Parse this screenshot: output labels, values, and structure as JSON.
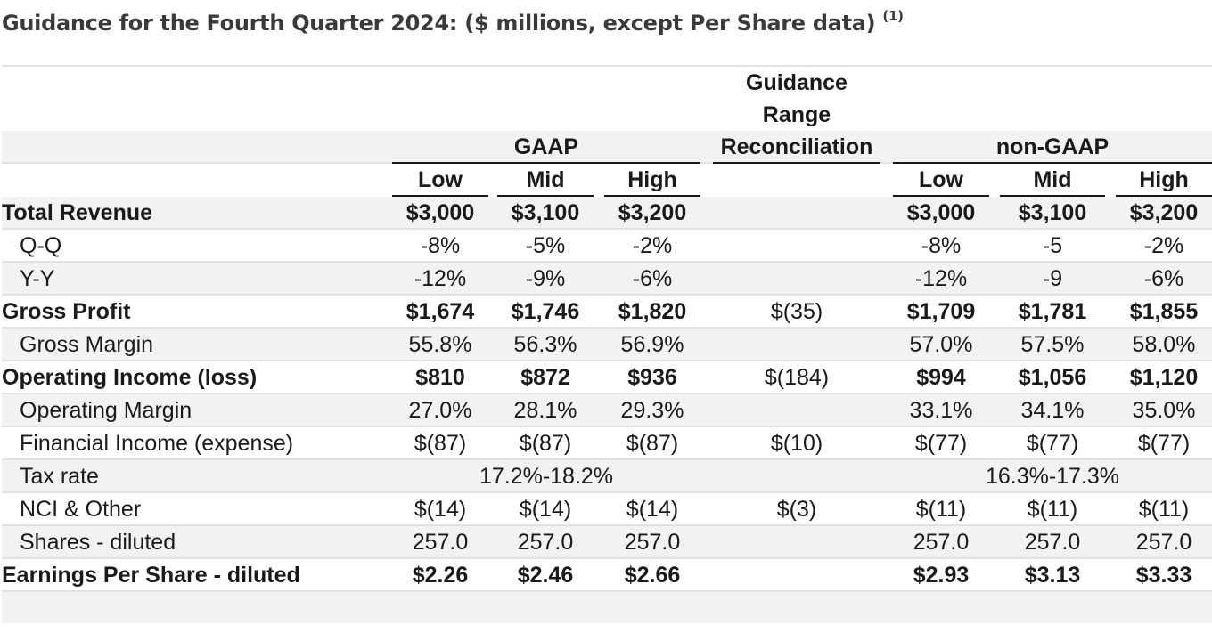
{
  "title": "Guidance for the Fourth Quarter 2024: ($ millions, except Per Share data)",
  "title_footnote": "(1)",
  "header": {
    "guidance_range": "Guidance",
    "guidance_range_2": "Range",
    "reconciliation": "Reconciliation",
    "gaap": "GAAP",
    "non_gaap": "non-GAAP",
    "low": "Low",
    "mid": "Mid",
    "high": "High"
  },
  "rows": [
    {
      "label": "Total Revenue",
      "gaap_low": "$3,000",
      "gaap_mid": "$3,100",
      "gaap_high": "$3,200",
      "recon": "",
      "ng_low": "$3,000",
      "ng_mid": "$3,100",
      "ng_high": "$3,200"
    },
    {
      "label": "Q-Q",
      "gaap_low": "-8%",
      "gaap_mid": "-5%",
      "gaap_high": "-2%",
      "recon": "",
      "ng_low": "-8%",
      "ng_mid": "-5",
      "ng_high": "-2%"
    },
    {
      "label": "Y-Y",
      "gaap_low": "-12%",
      "gaap_mid": "-9%",
      "gaap_high": "-6%",
      "recon": "",
      "ng_low": "-12%",
      "ng_mid": "-9",
      "ng_high": "-6%"
    },
    {
      "label": "Gross Profit",
      "gaap_low": "$1,674",
      "gaap_mid": "$1,746",
      "gaap_high": "$1,820",
      "recon": "$(35)",
      "ng_low": "$1,709",
      "ng_mid": "$1,781",
      "ng_high": "$1,855"
    },
    {
      "label": "Gross Margin",
      "gaap_low": "55.8%",
      "gaap_mid": "56.3%",
      "gaap_high": "56.9%",
      "recon": "",
      "ng_low": "57.0%",
      "ng_mid": "57.5%",
      "ng_high": "58.0%"
    },
    {
      "label": "Operating Income (loss)",
      "gaap_low": "$810",
      "gaap_mid": "$872",
      "gaap_high": "$936",
      "recon": "$(184)",
      "ng_low": "$994",
      "ng_mid": "$1,056",
      "ng_high": "$1,120"
    },
    {
      "label": "Operating Margin",
      "gaap_low": "27.0%",
      "gaap_mid": "28.1%",
      "gaap_high": "29.3%",
      "recon": "",
      "ng_low": "33.1%",
      "ng_mid": "34.1%",
      "ng_high": "35.0%"
    },
    {
      "label": "Financial Income (expense)",
      "gaap_low": "$(87)",
      "gaap_mid": "$(87)",
      "gaap_high": "$(87)",
      "recon": "$(10)",
      "ng_low": "$(77)",
      "ng_mid": "$(77)",
      "ng_high": "$(77)"
    },
    {
      "label": "Tax rate",
      "gaap_span": "17.2%-18.2%",
      "ng_span": "16.3%-17.3%"
    },
    {
      "label": "NCI & Other",
      "gaap_low": "$(14)",
      "gaap_mid": "$(14)",
      "gaap_high": "$(14)",
      "recon": "$(3)",
      "ng_low": "$(11)",
      "ng_mid": "$(11)",
      "ng_high": "$(11)"
    },
    {
      "label": "Shares - diluted",
      "gaap_low": "257.0",
      "gaap_mid": "257.0",
      "gaap_high": "257.0",
      "recon": "",
      "ng_low": "257.0",
      "ng_mid": "257.0",
      "ng_high": "257.0"
    },
    {
      "label": "Earnings Per Share - diluted",
      "gaap_low": "$2.26",
      "gaap_mid": "$2.46",
      "gaap_high": "$2.66",
      "recon": "",
      "ng_low": "$2.93",
      "ng_mid": "$3.13",
      "ng_high": "$3.33"
    }
  ]
}
